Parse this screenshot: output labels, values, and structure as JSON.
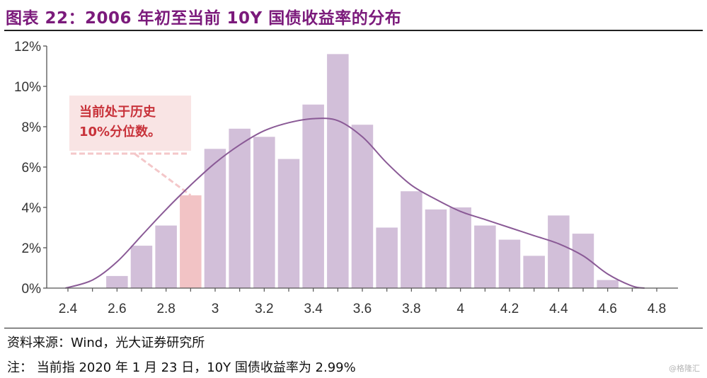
{
  "header": {
    "title": "图表 22：2006 年初至当前 10Y 国债收益率的分布"
  },
  "callout": {
    "text": "当前处于历史\n10%分位数。"
  },
  "footer": {
    "source": "资料来源：Wind，光大证券研究所",
    "note": "注：  当前指 2020 年 1 月 23 日，10Y 国债收益率为 2.99%",
    "watermark": "@格隆汇"
  },
  "colors": {
    "bar": "#d2bfd9",
    "bar_highlight": "#f2c3c5",
    "curve": "#8a5a96",
    "title": "#7b1a7b",
    "callout_text": "#c8323a"
  },
  "chart_data": {
    "type": "bar",
    "xlim": [
      2.4,
      4.8
    ],
    "xticks": [
      "2.4",
      "2.6",
      "2.8",
      "3",
      "3.2",
      "3.4",
      "3.6",
      "3.8",
      "4",
      "4.2",
      "4.4",
      "4.6",
      "4.8"
    ],
    "ylim": [
      0,
      12
    ],
    "yticks": [
      "0%",
      "2%",
      "4%",
      "6%",
      "8%",
      "10%",
      "12%"
    ],
    "bin_width": 0.1,
    "bins": [
      {
        "x": 2.6,
        "value": 0.6
      },
      {
        "x": 2.7,
        "value": 2.1
      },
      {
        "x": 2.8,
        "value": 3.1
      },
      {
        "x": 2.9,
        "value": 4.6,
        "highlight": true
      },
      {
        "x": 3.0,
        "value": 6.9
      },
      {
        "x": 3.1,
        "value": 7.9
      },
      {
        "x": 3.2,
        "value": 7.5
      },
      {
        "x": 3.3,
        "value": 6.4
      },
      {
        "x": 3.4,
        "value": 9.1
      },
      {
        "x": 3.5,
        "value": 11.6
      },
      {
        "x": 3.6,
        "value": 8.1
      },
      {
        "x": 3.7,
        "value": 3.0
      },
      {
        "x": 3.8,
        "value": 4.8
      },
      {
        "x": 3.9,
        "value": 3.9
      },
      {
        "x": 4.0,
        "value": 4.0
      },
      {
        "x": 4.1,
        "value": 3.1
      },
      {
        "x": 4.2,
        "value": 2.4
      },
      {
        "x": 4.3,
        "value": 1.6
      },
      {
        "x": 4.4,
        "value": 3.6
      },
      {
        "x": 4.5,
        "value": 2.7
      },
      {
        "x": 4.6,
        "value": 0.4
      }
    ],
    "density_curve": [
      [
        2.39,
        0.0
      ],
      [
        2.5,
        0.4
      ],
      [
        2.6,
        1.3
      ],
      [
        2.7,
        2.6
      ],
      [
        2.8,
        3.9
      ],
      [
        2.9,
        5.1
      ],
      [
        3.0,
        6.2
      ],
      [
        3.1,
        7.1
      ],
      [
        3.2,
        7.8
      ],
      [
        3.3,
        8.2
      ],
      [
        3.4,
        8.4
      ],
      [
        3.5,
        8.3
      ],
      [
        3.6,
        7.5
      ],
      [
        3.7,
        6.2
      ],
      [
        3.8,
        5.1
      ],
      [
        3.9,
        4.4
      ],
      [
        4.0,
        3.8
      ],
      [
        4.1,
        3.4
      ],
      [
        4.2,
        3.0
      ],
      [
        4.3,
        2.6
      ],
      [
        4.4,
        2.2
      ],
      [
        4.5,
        1.6
      ],
      [
        4.6,
        0.7
      ],
      [
        4.7,
        0.1
      ],
      [
        4.75,
        0.0
      ]
    ],
    "grid": false
  }
}
